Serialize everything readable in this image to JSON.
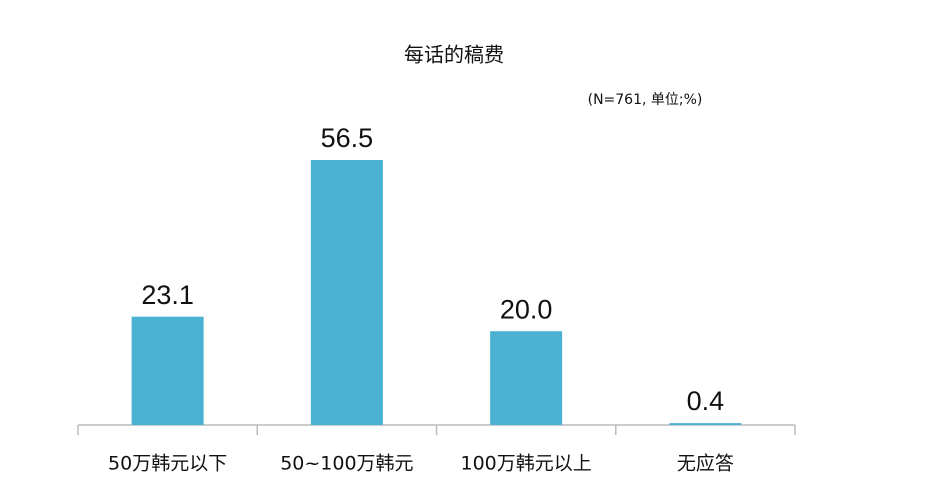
{
  "chart_data": {
    "type": "bar",
    "title": "每话的稿费",
    "subtitle": "(N=761, 单位;%)",
    "categories": [
      "50万韩元以下",
      "50~100万韩元",
      "100万韩元以上",
      "无应答"
    ],
    "values": [
      23.1,
      56.5,
      20.0,
      0.4
    ],
    "value_labels": [
      "23.1",
      "56.5",
      "20.0",
      "0.4"
    ],
    "color": "#4bb1d3"
  }
}
